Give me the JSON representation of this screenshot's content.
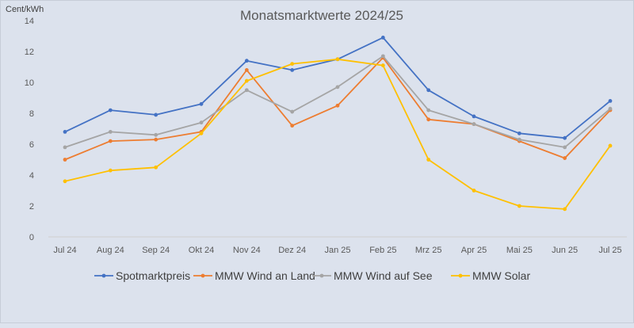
{
  "chart_data": {
    "type": "line",
    "title": "Monatsmarktwerte 2024/25",
    "ylabel": "Cent/kWh",
    "xlabel": "",
    "ylim": [
      0,
      14
    ],
    "yticks": [
      0,
      2,
      4,
      6,
      8,
      10,
      12,
      14
    ],
    "grid": false,
    "legend_position": "bottom",
    "categories": [
      "Jul 24",
      "Aug 24",
      "Sep 24",
      "Okt 24",
      "Nov 24",
      "Dez 24",
      "Jan 25",
      "Feb 25",
      "Mrz 25",
      "Apr 25",
      "Mai 25",
      "Jun 25",
      "Jul 25"
    ],
    "series": [
      {
        "name": "Spotmarktpreis",
        "color": "#4472c4",
        "values": [
          6.8,
          8.2,
          7.9,
          8.6,
          11.4,
          10.8,
          11.5,
          12.9,
          9.5,
          7.8,
          6.7,
          6.4,
          8.8
        ]
      },
      {
        "name": "MMW Wind an Land",
        "color": "#ed7d31",
        "values": [
          5.0,
          6.2,
          6.3,
          6.8,
          10.8,
          7.2,
          8.5,
          11.6,
          7.6,
          7.3,
          6.2,
          5.1,
          8.2
        ]
      },
      {
        "name": "MMW Wind auf See",
        "color": "#a5a5a5",
        "values": [
          5.8,
          6.8,
          6.6,
          7.4,
          9.5,
          8.1,
          9.7,
          11.7,
          8.2,
          7.3,
          6.3,
          5.8,
          8.3
        ]
      },
      {
        "name": "MMW Solar",
        "color": "#ffc000",
        "values": [
          3.6,
          4.3,
          4.5,
          6.7,
          10.1,
          11.2,
          11.5,
          11.1,
          5.0,
          3.0,
          2.0,
          1.8,
          5.9
        ]
      }
    ]
  }
}
